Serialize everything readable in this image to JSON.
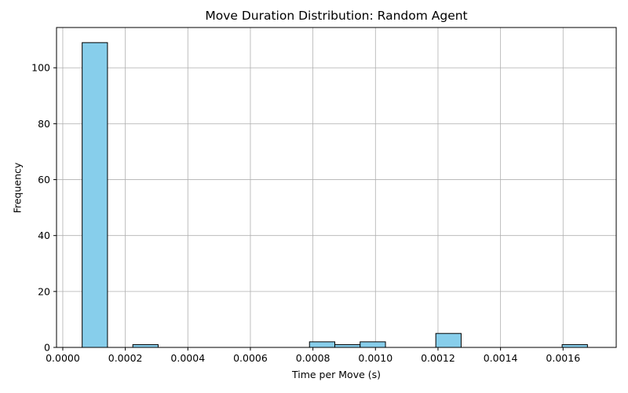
{
  "chart_data": {
    "type": "bar",
    "title": "Move Duration Distribution: Random Agent",
    "xlabel": "Time per Move (s)",
    "ylabel": "Frequency",
    "xlim": [
      -2e-05,
      0.00177
    ],
    "ylim": [
      0,
      114.4
    ],
    "x_ticks": [
      "0.0000",
      "0.0002",
      "0.0004",
      "0.0006",
      "0.0008",
      "0.0010",
      "0.0012",
      "0.0014",
      "0.0016"
    ],
    "x_tick_values": [
      0.0,
      0.0002,
      0.0004,
      0.0006,
      0.0008,
      0.001,
      0.0012,
      0.0014,
      0.0016
    ],
    "y_ticks": [
      "0",
      "20",
      "40",
      "60",
      "80",
      "100"
    ],
    "y_tick_values": [
      0,
      20,
      40,
      60,
      80,
      100
    ],
    "grid": true,
    "bar_color": "#87CEEB",
    "edge_color": "#000000",
    "bins": [
      {
        "x0": 6.2e-05,
        "x1": 0.000143,
        "count": 109
      },
      {
        "x0": 0.000224,
        "x1": 0.000305,
        "count": 1
      },
      {
        "x0": 0.000789,
        "x1": 0.00087,
        "count": 2
      },
      {
        "x0": 0.00087,
        "x1": 0.000951,
        "count": 1
      },
      {
        "x0": 0.000951,
        "x1": 0.001032,
        "count": 2
      },
      {
        "x0": 0.001193,
        "x1": 0.001274,
        "count": 5
      },
      {
        "x0": 0.001597,
        "x1": 0.001678,
        "count": 1
      }
    ]
  }
}
